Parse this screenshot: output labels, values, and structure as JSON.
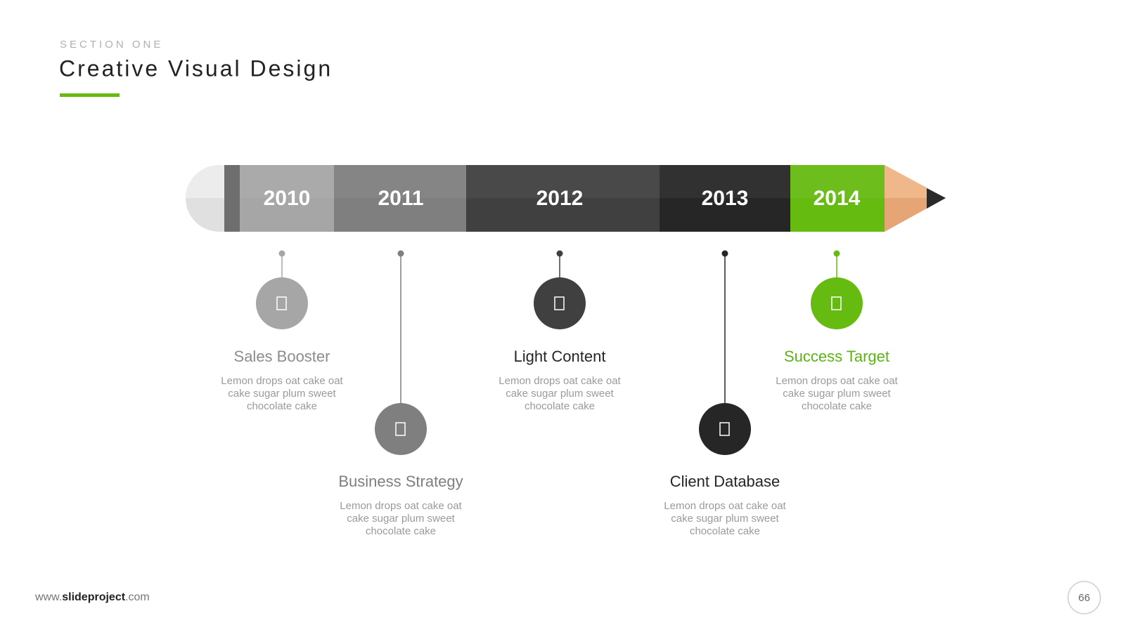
{
  "header": {
    "section": "SECTION ONE",
    "title": "Creative Visual Design"
  },
  "timeline": [
    {
      "year": "2010",
      "title": "Sales Booster",
      "text": [
        "Lemon drops oat cake oat",
        "cake sugar plum sweet",
        "chocolate cake"
      ]
    },
    {
      "year": "2011",
      "title": "Business Strategy",
      "text": [
        "Lemon drops oat cake oat",
        "cake sugar plum sweet",
        "chocolate cake"
      ]
    },
    {
      "year": "2012",
      "title": "Light Content",
      "text": [
        "Lemon drops oat cake oat",
        "cake sugar plum sweet",
        "chocolate cake"
      ]
    },
    {
      "year": "2013",
      "title": "Client Database",
      "text": [
        "Lemon drops oat cake oat",
        "cake sugar plum sweet",
        "chocolate cake"
      ]
    },
    {
      "year": "2014",
      "title": "Success Target",
      "text": [
        "Lemon drops oat cake oat",
        "cake sugar plum sweet",
        "chocolate cake"
      ]
    }
  ],
  "footer": {
    "prefix": "www.",
    "brand": "slideproject",
    "suffix": ".com",
    "page": "66"
  }
}
